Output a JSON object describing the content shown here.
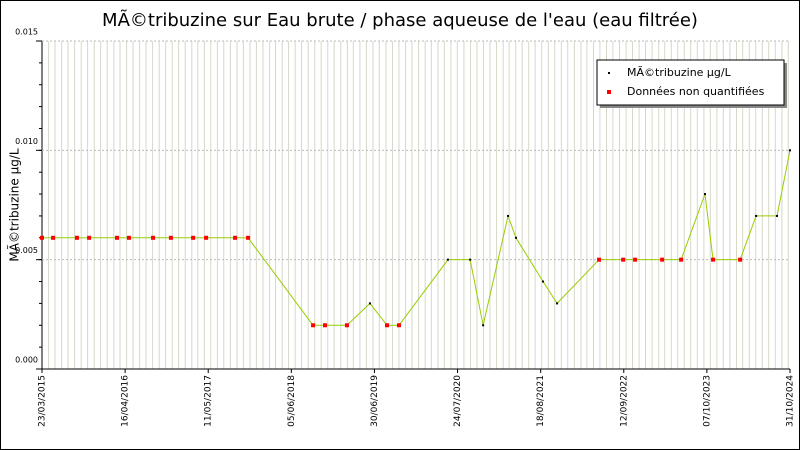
{
  "chart_data": {
    "type": "line",
    "title": "MÃ©tribuzine sur Eau brute / phase aqueuse de l'eau (eau filtrée)",
    "y_label": "MÃ©tribuzine µg/L",
    "x": [
      "2015-03-23",
      "2015-05-14",
      "2015-09-03",
      "2015-10-30",
      "2016-03-09",
      "2016-05-04",
      "2016-08-25",
      "2016-11-17",
      "2017-03-01",
      "2017-05-01",
      "2017-09-14",
      "2017-11-14",
      "2018-09-15",
      "2018-11-10",
      "2019-02-21",
      "2019-06-09",
      "2019-08-28",
      "2019-10-23",
      "2020-06-09",
      "2020-09-21",
      "2020-11-21",
      "2021-03-18",
      "2021-04-24",
      "2021-08-29",
      "2021-11-03",
      "2022-05-19",
      "2022-09-09",
      "2022-11-04",
      "2023-03-11",
      "2023-06-08",
      "2023-09-28",
      "2023-11-05",
      "2024-03-11",
      "2024-05-25",
      "2024-08-31",
      "2024-10-31"
    ],
    "series": [
      {
        "name": "MÃ©tribuzine µg/L",
        "color": "#000000",
        "values": [
          null,
          null,
          null,
          null,
          null,
          null,
          null,
          null,
          null,
          null,
          null,
          null,
          null,
          null,
          null,
          0.003,
          null,
          null,
          0.005,
          0.005,
          0.002,
          0.007,
          0.006,
          0.004,
          0.003,
          null,
          null,
          null,
          null,
          null,
          0.008,
          null,
          null,
          0.007,
          0.007,
          0.01
        ]
      },
      {
        "name": "Données non quantifiées",
        "color": "#ff0000",
        "values": [
          0.006,
          0.006,
          0.006,
          0.006,
          0.006,
          0.006,
          0.006,
          0.006,
          0.006,
          0.006,
          0.006,
          0.006,
          0.002,
          0.002,
          0.002,
          null,
          0.002,
          0.002,
          null,
          null,
          null,
          null,
          null,
          null,
          null,
          0.005,
          0.005,
          0.005,
          0.005,
          0.005,
          null,
          0.005,
          0.005,
          null,
          null,
          null
        ]
      }
    ],
    "line_color": "#99cc00",
    "xlim": [
      "2015-03-23",
      "2024-10-31"
    ],
    "xticks": [
      {
        "value": "2015-03-23",
        "label": "23/03/2015"
      },
      {
        "value": "2016-04-16",
        "label": "16/04/2016"
      },
      {
        "value": "2017-05-11",
        "label": "11/05/2017"
      },
      {
        "value": "2018-06-05",
        "label": "05/06/2018"
      },
      {
        "value": "2019-06-30",
        "label": "30/06/2019"
      },
      {
        "value": "2020-07-24",
        "label": "24/07/2020"
      },
      {
        "value": "2021-08-18",
        "label": "18/08/2021"
      },
      {
        "value": "2022-09-12",
        "label": "12/09/2022"
      },
      {
        "value": "2023-10-07",
        "label": "07/10/2023"
      },
      {
        "value": "2024-10-31",
        "label": "31/10/2024"
      }
    ],
    "ylim": [
      0,
      0.015
    ],
    "yticks": [
      {
        "value": 0,
        "label": "0.000"
      },
      {
        "value": 0.005,
        "label": "0.005"
      },
      {
        "value": 0.01,
        "label": "0.010"
      },
      {
        "value": 0.015,
        "label": "0.015"
      }
    ],
    "grid": true,
    "legend": "upper right"
  }
}
